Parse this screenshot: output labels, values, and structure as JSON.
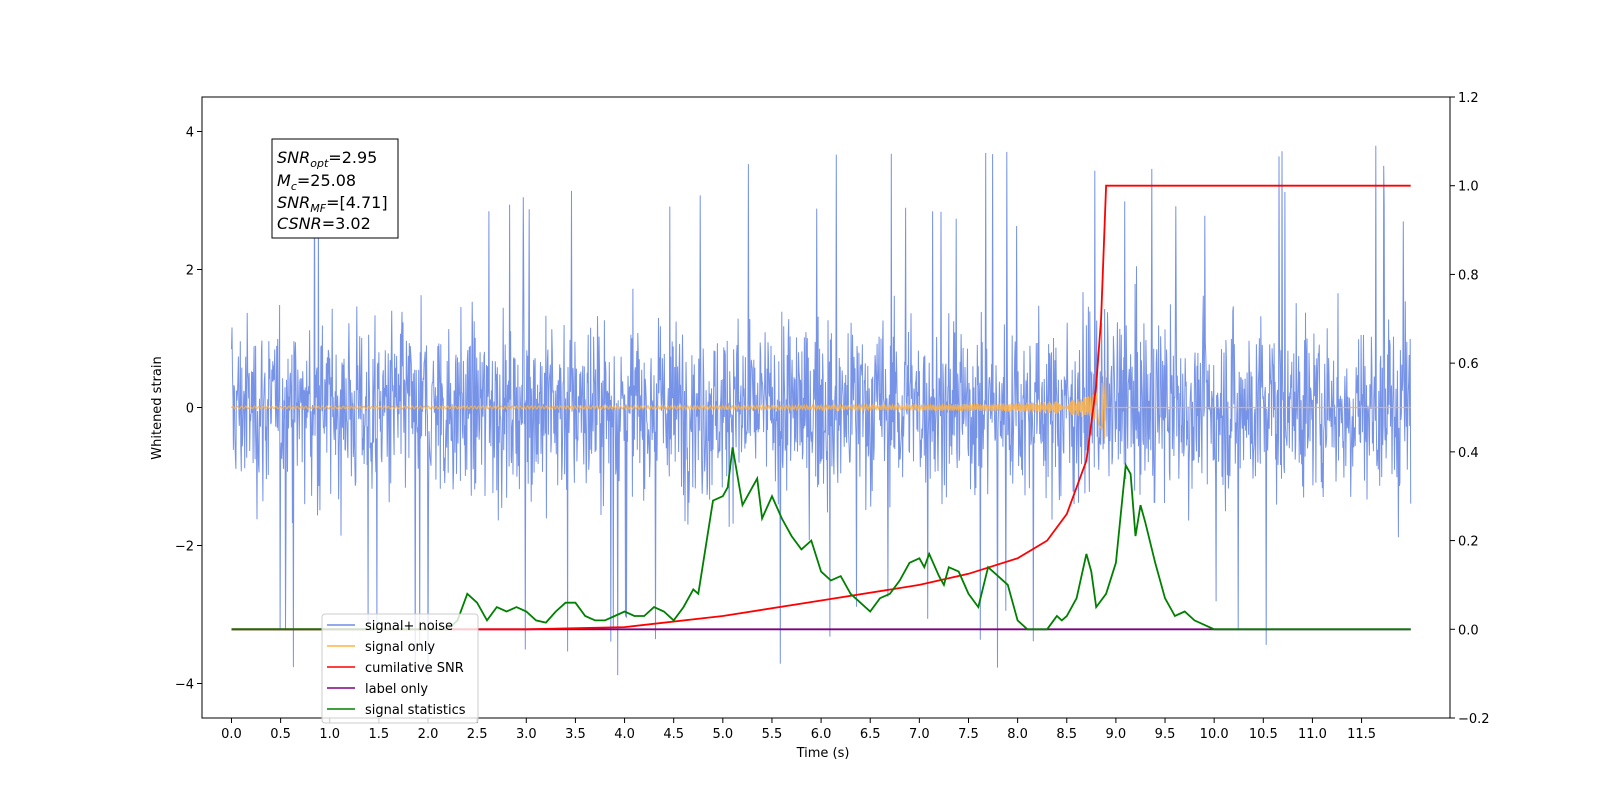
{
  "chart_data": {
    "type": "line",
    "xlabel": "Time (s)",
    "ylabel": "Whitened strain",
    "xlim": [
      -0.3,
      12.4
    ],
    "ylim": [
      -4.5,
      4.5
    ],
    "y2lim": [
      -0.2,
      1.2
    ],
    "x_ticks": [
      "0.0",
      "0.5",
      "1.0",
      "1.5",
      "2.0",
      "2.5",
      "3.0",
      "3.5",
      "4.0",
      "4.5",
      "5.0",
      "5.5",
      "6.0",
      "6.5",
      "7.0",
      "7.5",
      "8.0",
      "8.5",
      "9.0",
      "9.5",
      "10.0",
      "10.5",
      "11.0",
      "11.5"
    ],
    "y_ticks": [
      "4",
      "2",
      "0",
      "−2",
      "−4"
    ],
    "y2_ticks": [
      "1.2",
      "1.0",
      "0.8",
      "0.6",
      "0.4",
      "0.2",
      "0.0",
      "−0.2"
    ],
    "annotation": {
      "snr_opt": {
        "label": "SNR",
        "sub": "opt",
        "value": "=2.95"
      },
      "mc": {
        "label": "M",
        "sub": "c",
        "value": "=25.08"
      },
      "snr_mf": {
        "label": "SNR",
        "sub": "MF",
        "value": "=[4.71]"
      },
      "csnr": {
        "label": "CSNR",
        "value": "=3.02"
      }
    },
    "legend_position": "lower-left",
    "series": [
      {
        "name": "signal+ noise",
        "color": "#6f8de6",
        "axis": "left",
        "description_values": "dense noise, roughly within [-2.3, 2.3] with spikes to about ±4"
      },
      {
        "name": "signal only",
        "color": "#ffb347",
        "axis": "left",
        "chirp_peak_time": 8.9,
        "chirp_peak_amplitude": 0.65
      },
      {
        "name": "cumilative SNR",
        "color": "#ff0000",
        "axis": "right",
        "points": [
          [
            0.0,
            0.0
          ],
          [
            3.0,
            0.0
          ],
          [
            4.0,
            0.005
          ],
          [
            5.0,
            0.03
          ],
          [
            6.0,
            0.065
          ],
          [
            7.0,
            0.1
          ],
          [
            7.5,
            0.125
          ],
          [
            8.0,
            0.16
          ],
          [
            8.3,
            0.2
          ],
          [
            8.5,
            0.26
          ],
          [
            8.7,
            0.38
          ],
          [
            8.8,
            0.55
          ],
          [
            8.85,
            0.7
          ],
          [
            8.9,
            1.0
          ],
          [
            12.0,
            1.0
          ]
        ]
      },
      {
        "name": "label only",
        "color": "#800080",
        "axis": "right",
        "points": [
          [
            0.0,
            0.0
          ],
          [
            12.0,
            0.0
          ]
        ]
      },
      {
        "name": "signal statistics",
        "color": "#008000",
        "axis": "right",
        "points": [
          [
            0.0,
            0.0
          ],
          [
            2.2,
            0.0
          ],
          [
            2.3,
            0.02
          ],
          [
            2.4,
            0.08
          ],
          [
            2.5,
            0.06
          ],
          [
            2.6,
            0.02
          ],
          [
            2.7,
            0.05
          ],
          [
            2.8,
            0.04
          ],
          [
            2.9,
            0.05
          ],
          [
            3.0,
            0.04
          ],
          [
            3.1,
            0.02
          ],
          [
            3.2,
            0.015
          ],
          [
            3.3,
            0.04
          ],
          [
            3.4,
            0.06
          ],
          [
            3.5,
            0.06
          ],
          [
            3.6,
            0.03
          ],
          [
            3.7,
            0.02
          ],
          [
            3.8,
            0.02
          ],
          [
            3.9,
            0.03
          ],
          [
            4.0,
            0.04
          ],
          [
            4.1,
            0.03
          ],
          [
            4.2,
            0.03
          ],
          [
            4.3,
            0.05
          ],
          [
            4.4,
            0.04
          ],
          [
            4.5,
            0.02
          ],
          [
            4.6,
            0.05
          ],
          [
            4.7,
            0.09
          ],
          [
            4.75,
            0.08
          ],
          [
            4.8,
            0.15
          ],
          [
            4.9,
            0.29
          ],
          [
            5.0,
            0.3
          ],
          [
            5.05,
            0.32
          ],
          [
            5.1,
            0.41
          ],
          [
            5.2,
            0.28
          ],
          [
            5.3,
            0.32
          ],
          [
            5.35,
            0.34
          ],
          [
            5.4,
            0.25
          ],
          [
            5.5,
            0.3
          ],
          [
            5.6,
            0.25
          ],
          [
            5.7,
            0.21
          ],
          [
            5.8,
            0.18
          ],
          [
            5.9,
            0.2
          ],
          [
            6.0,
            0.13
          ],
          [
            6.1,
            0.11
          ],
          [
            6.2,
            0.12
          ],
          [
            6.3,
            0.08
          ],
          [
            6.4,
            0.06
          ],
          [
            6.5,
            0.04
          ],
          [
            6.6,
            0.07
          ],
          [
            6.7,
            0.08
          ],
          [
            6.8,
            0.11
          ],
          [
            6.9,
            0.15
          ],
          [
            7.0,
            0.16
          ],
          [
            7.05,
            0.14
          ],
          [
            7.1,
            0.17
          ],
          [
            7.2,
            0.12
          ],
          [
            7.25,
            0.1
          ],
          [
            7.3,
            0.14
          ],
          [
            7.4,
            0.13
          ],
          [
            7.5,
            0.08
          ],
          [
            7.6,
            0.05
          ],
          [
            7.7,
            0.14
          ],
          [
            7.8,
            0.12
          ],
          [
            7.9,
            0.1
          ],
          [
            8.0,
            0.02
          ],
          [
            8.1,
            0.0
          ],
          [
            8.3,
            0.0
          ],
          [
            8.4,
            0.03
          ],
          [
            8.45,
            0.02
          ],
          [
            8.5,
            0.03
          ],
          [
            8.6,
            0.07
          ],
          [
            8.7,
            0.17
          ],
          [
            8.75,
            0.13
          ],
          [
            8.8,
            0.05
          ],
          [
            8.9,
            0.08
          ],
          [
            9.0,
            0.15
          ],
          [
            9.1,
            0.37
          ],
          [
            9.15,
            0.35
          ],
          [
            9.2,
            0.21
          ],
          [
            9.25,
            0.28
          ],
          [
            9.3,
            0.24
          ],
          [
            9.4,
            0.15
          ],
          [
            9.5,
            0.07
          ],
          [
            9.6,
            0.03
          ],
          [
            9.7,
            0.04
          ],
          [
            9.8,
            0.02
          ],
          [
            10.0,
            0.0
          ],
          [
            12.0,
            0.0
          ]
        ]
      }
    ]
  }
}
